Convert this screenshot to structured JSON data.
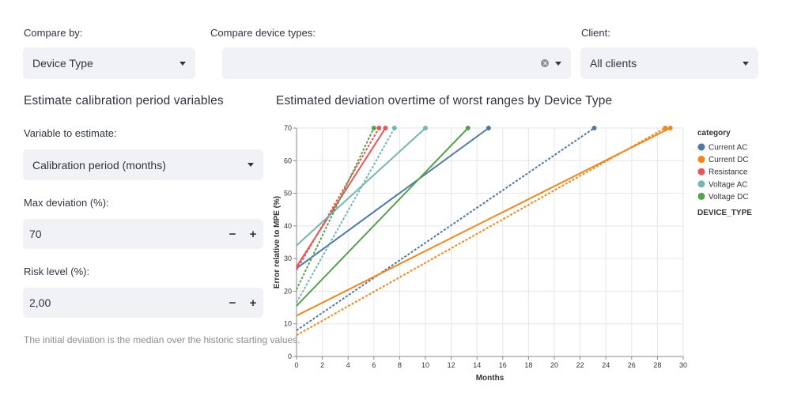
{
  "compare_by": {
    "label": "Compare by:",
    "value": "Device Type"
  },
  "compare_types": {
    "label": "Compare device types:",
    "value": ""
  },
  "client": {
    "label": "Client:",
    "value": "All clients"
  },
  "estimate": {
    "heading": "Estimate calibration period variables",
    "variable_label": "Variable to estimate:",
    "variable_value": "Calibration period (months)",
    "max_dev_label": "Max deviation (%):",
    "max_dev_value": "70",
    "risk_label": "Risk level (%):",
    "risk_value": "2,00",
    "minus": "−",
    "plus": "+",
    "caption": "The initial deviation is the median over the historic starting values."
  },
  "chart_title": "Estimated deviation overtime of worst ranges by Device Type",
  "chart_data": {
    "type": "line",
    "title": "Estimated deviation overtime of worst ranges by Device Type",
    "xlabel": "Months",
    "ylabel": "Error relative to MPE (%)",
    "xlim": [
      0,
      30
    ],
    "ylim": [
      0,
      70
    ],
    "xticks": [
      "0",
      "2",
      "4",
      "6",
      "8",
      "10",
      "12",
      "14",
      "16",
      "18",
      "20",
      "22",
      "24",
      "26",
      "28",
      "30"
    ],
    "yticks": [
      "0",
      "10",
      "20",
      "30",
      "40",
      "50",
      "60",
      "70"
    ],
    "legend_title": "category",
    "legend_subtitle": "DEVICE_TYPE",
    "series": [
      {
        "name": "Current AC",
        "color": "#4c78a8",
        "solid": [
          0,
          27,
          14.9,
          70
        ],
        "dashed": [
          0,
          8,
          23.1,
          70
        ]
      },
      {
        "name": "Current DC",
        "color": "#f58518",
        "solid": [
          0,
          12.5,
          29,
          70
        ],
        "dashed": [
          0,
          6.5,
          28.6,
          70
        ]
      },
      {
        "name": "Resistance",
        "color": "#e45756",
        "solid": [
          0,
          27.5,
          6.9,
          70
        ],
        "dashed": [
          0,
          26.5,
          6.4,
          70
        ]
      },
      {
        "name": "Voltage AC",
        "color": "#72b7b2",
        "solid": [
          0,
          34,
          10,
          70
        ],
        "dashed": [
          0,
          16.5,
          7.6,
          70
        ]
      },
      {
        "name": "Voltage DC",
        "color": "#54a24b",
        "solid": [
          0,
          15.5,
          13.3,
          70
        ],
        "dashed": [
          0,
          20.5,
          6,
          70
        ]
      }
    ]
  }
}
